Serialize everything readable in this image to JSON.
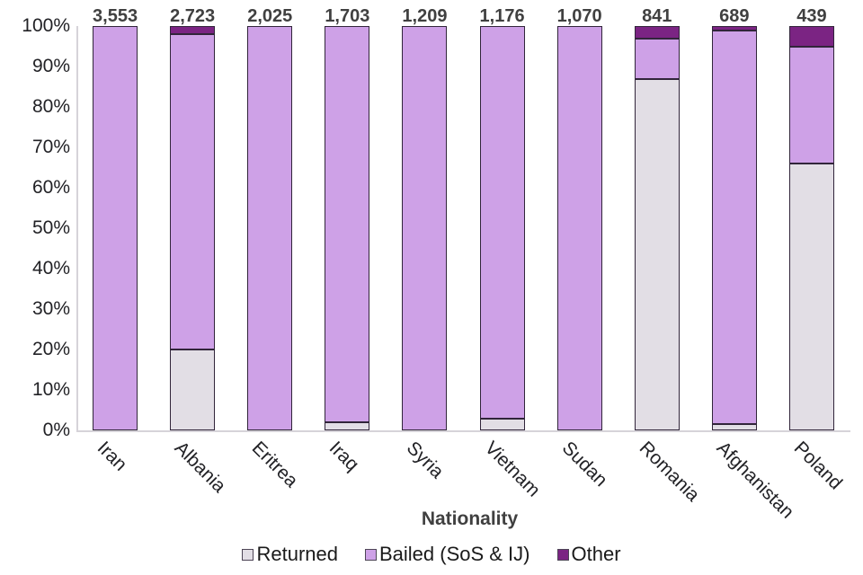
{
  "colors": {
    "returned": "#e2dee5",
    "bailed": "#cea1e7",
    "other": "#7b2483",
    "bar_border": "#31253a",
    "axis_line": "#d6d3d9",
    "tick_text": "#222226",
    "value_text": "#404040"
  },
  "chart_data": {
    "type": "bar",
    "subtype": "100%-stacked-vertical",
    "title": "",
    "xlabel": "Nationality",
    "ylabel": "",
    "ylim": [
      0,
      100
    ],
    "ytick_step": 10,
    "ytick_suffix": "%",
    "grid": "off",
    "legend_position": "bottom",
    "categories": [
      "Iran",
      "Albania",
      "Eritrea",
      "Iraq",
      "Syria",
      "Vietnam",
      "Sudan",
      "Romania",
      "Afghanistan",
      "Poland"
    ],
    "bar_totals": [
      "3,553",
      "2,723",
      "2,025",
      "1,703",
      "1,209",
      "1,176",
      "1,070",
      "841",
      "689",
      "439"
    ],
    "series": [
      {
        "name": "Returned",
        "color_key": "returned",
        "values": [
          0,
          20,
          0,
          2,
          0,
          3,
          0,
          87,
          1.5,
          66
        ]
      },
      {
        "name": "Bailed (SoS & IJ)",
        "color_key": "bailed",
        "values": [
          100,
          78,
          100,
          98,
          100,
          97,
          100,
          10,
          97.5,
          29
        ]
      },
      {
        "name": "Other",
        "color_key": "other",
        "values": [
          0,
          2,
          0,
          0,
          0,
          0,
          0,
          3,
          1,
          5
        ]
      }
    ]
  }
}
